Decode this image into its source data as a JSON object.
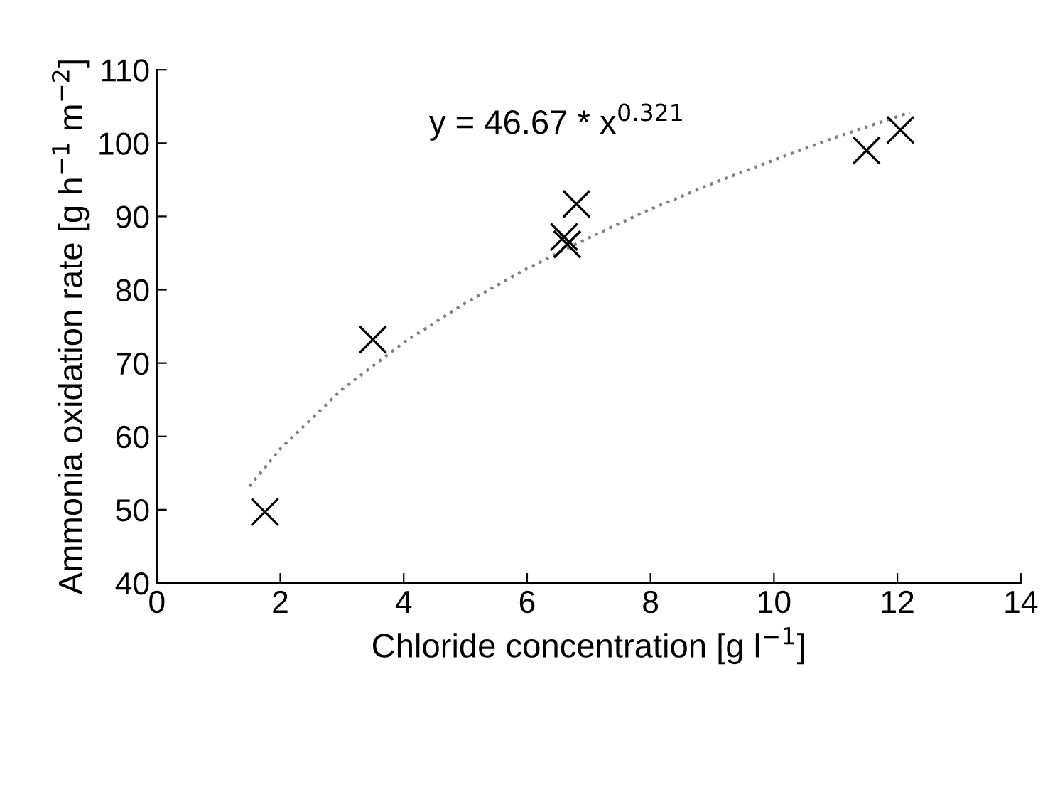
{
  "chart_data": {
    "type": "scatter",
    "xlabel": "Chloride concentration [g l$^{−1}$]",
    "ylabel": "Ammonia oxidation rate [g h$^{−1}$ m$^{−2}$]",
    "xlim": [
      0,
      14
    ],
    "xticks": [
      0,
      2,
      4,
      6,
      8,
      10,
      12,
      14
    ],
    "ylim": [
      40,
      110
    ],
    "yticks": [
      40,
      50,
      60,
      70,
      80,
      90,
      100,
      110
    ],
    "grid": false,
    "legend": false,
    "annotations": [
      "y = 46.67 * x$^{0.321}$"
    ],
    "series": [
      {
        "color": "#000000",
        "marker": "cross",
        "x": [
          1.75,
          3.5,
          6.6,
          6.65,
          6.8,
          11.5,
          12.05
        ],
        "values": [
          49.7,
          73.2,
          87.2,
          86.2,
          91.7,
          99.0,
          101.8
        ]
      },
      {
        "type": "line",
        "color": "#808080",
        "marker": "none",
        "line_style": "dotted",
        "x": [
          1.5,
          2,
          3,
          4,
          5,
          6,
          7,
          8,
          9,
          10,
          11,
          12.2
        ],
        "values": [
          53.2,
          58.3,
          66.4,
          72.8,
          78.2,
          82.9,
          87.1,
          91.0,
          94.5,
          97.7,
          100.8,
          104.2
        ]
      }
    ]
  }
}
